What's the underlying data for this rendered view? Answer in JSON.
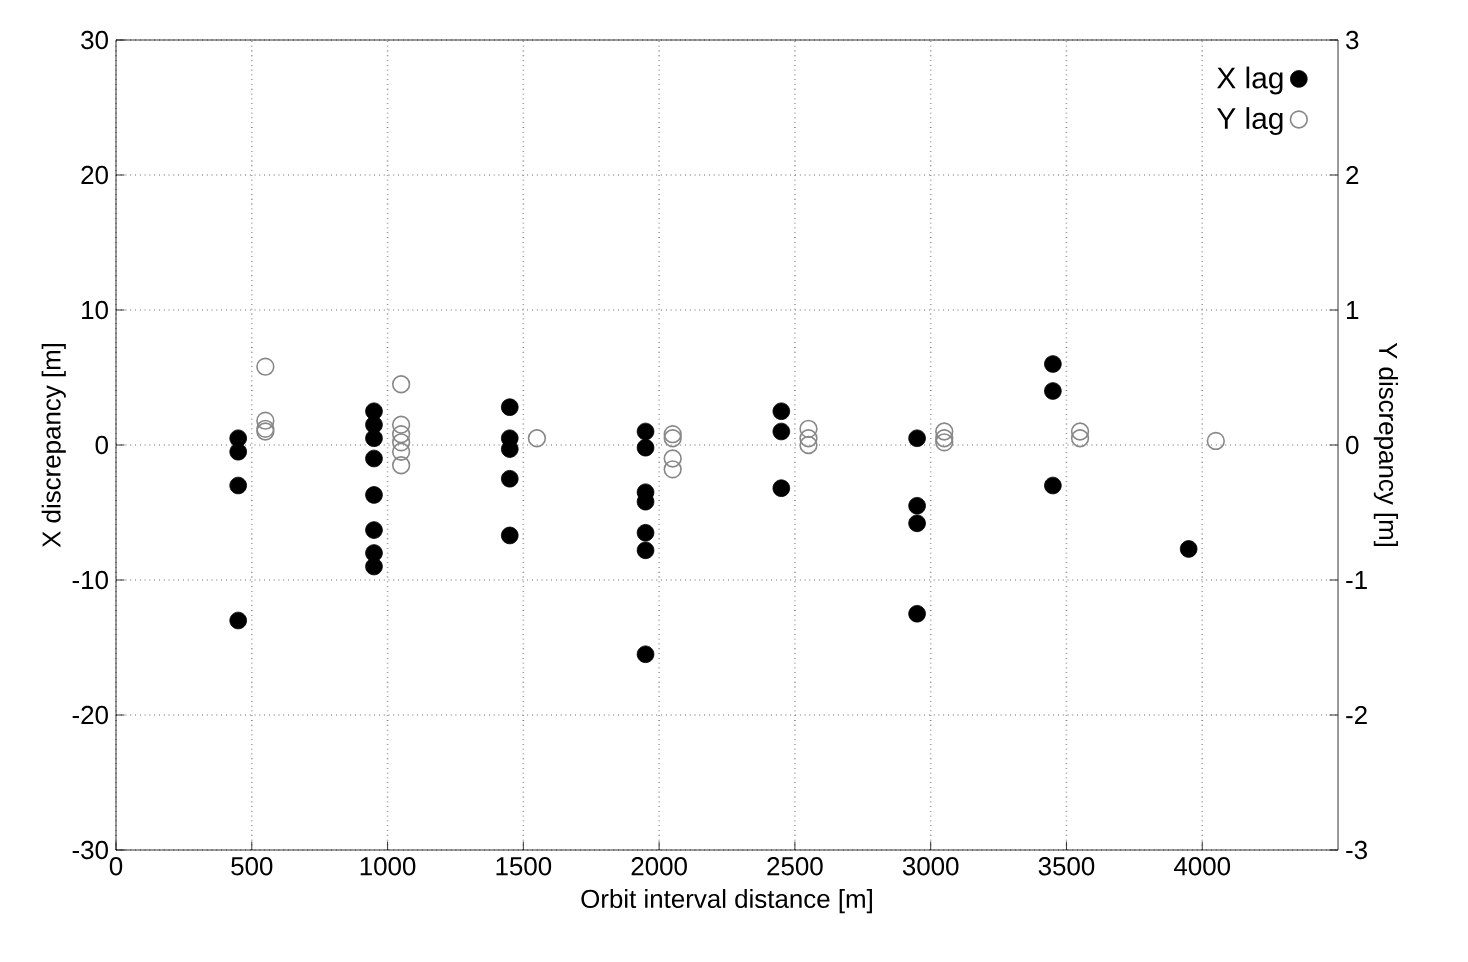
{
  "chart_data": {
    "type": "scatter",
    "xlabel": "Orbit interval distance [m]",
    "ylabel": "X discrepancy [m]",
    "y2label": "Y discrepancy [m]",
    "xlim": [
      0,
      4500
    ],
    "xticks": [
      0,
      500,
      1000,
      1500,
      2000,
      2500,
      3000,
      3500,
      4000
    ],
    "ylim": [
      -30,
      30
    ],
    "yticks": [
      -30,
      -20,
      -10,
      0,
      10,
      20,
      30
    ],
    "y2lim": [
      -3,
      3
    ],
    "y2ticks": [
      -3,
      -2,
      -1,
      0,
      1,
      2,
      3
    ],
    "grid": true,
    "legend": "top right",
    "marker": "circle",
    "series": [
      {
        "name": "X lag",
        "color": "#000000",
        "x": [
          450,
          450,
          450,
          450,
          950,
          950,
          950,
          950,
          950,
          950,
          950,
          950,
          1450,
          1450,
          1450,
          1450,
          1450,
          1950,
          1950,
          1950,
          1950,
          1950,
          1950,
          1950,
          2450,
          2450,
          2450,
          2950,
          2950,
          2950,
          2950,
          3450,
          3450,
          3450,
          3950
        ],
        "values": [
          0.5,
          -0.5,
          -3,
          -13,
          2.5,
          1.5,
          0.5,
          -1,
          -3.7,
          -6.3,
          -8,
          -9,
          2.8,
          0.5,
          -0.3,
          -2.5,
          -6.7,
          1,
          -0.2,
          -3.5,
          -4.2,
          -6.5,
          -7.8,
          -15.5,
          2.5,
          1,
          -3.2,
          0.5,
          -4.5,
          -5.8,
          -12.5,
          6,
          4,
          -3,
          -7.7
        ]
      },
      {
        "name": "Y lag",
        "color": "#888888",
        "axis": "y2",
        "x": [
          550,
          550,
          550,
          550,
          1050,
          1050,
          1050,
          1050,
          1050,
          1050,
          1550,
          2050,
          2050,
          2050,
          2050,
          2550,
          2550,
          2550,
          3050,
          3050,
          3050,
          3550,
          3550,
          4050
        ],
        "values": [
          0.58,
          0.18,
          0.12,
          0.1,
          0.45,
          0.15,
          0.08,
          0.02,
          -0.05,
          -0.15,
          0.05,
          0.08,
          0.05,
          -0.1,
          -0.18,
          0.12,
          0.05,
          0.0,
          0.1,
          0.05,
          0.02,
          0.1,
          0.05,
          0.03
        ]
      }
    ]
  }
}
